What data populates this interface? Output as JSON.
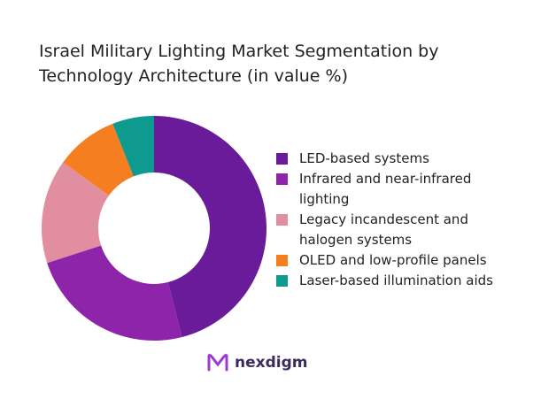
{
  "chart_data": {
    "type": "donut",
    "title": "Israel Military Lighting Market Segmentation by Technology Architecture (in value %)",
    "categories": [
      "LED-based systems",
      "Infrared and near-infrared lighting",
      "Legacy incandescent and halogen systems",
      "OLED and low-profile panels",
      "Laser-based illumination aids"
    ],
    "values": [
      46,
      24,
      15,
      9,
      6
    ],
    "colors": [
      "#6a1b9a",
      "#8e24aa",
      "#e08ea0",
      "#f57f20",
      "#0e9a8e"
    ],
    "legend": "right"
  },
  "logo": "nexdigm"
}
